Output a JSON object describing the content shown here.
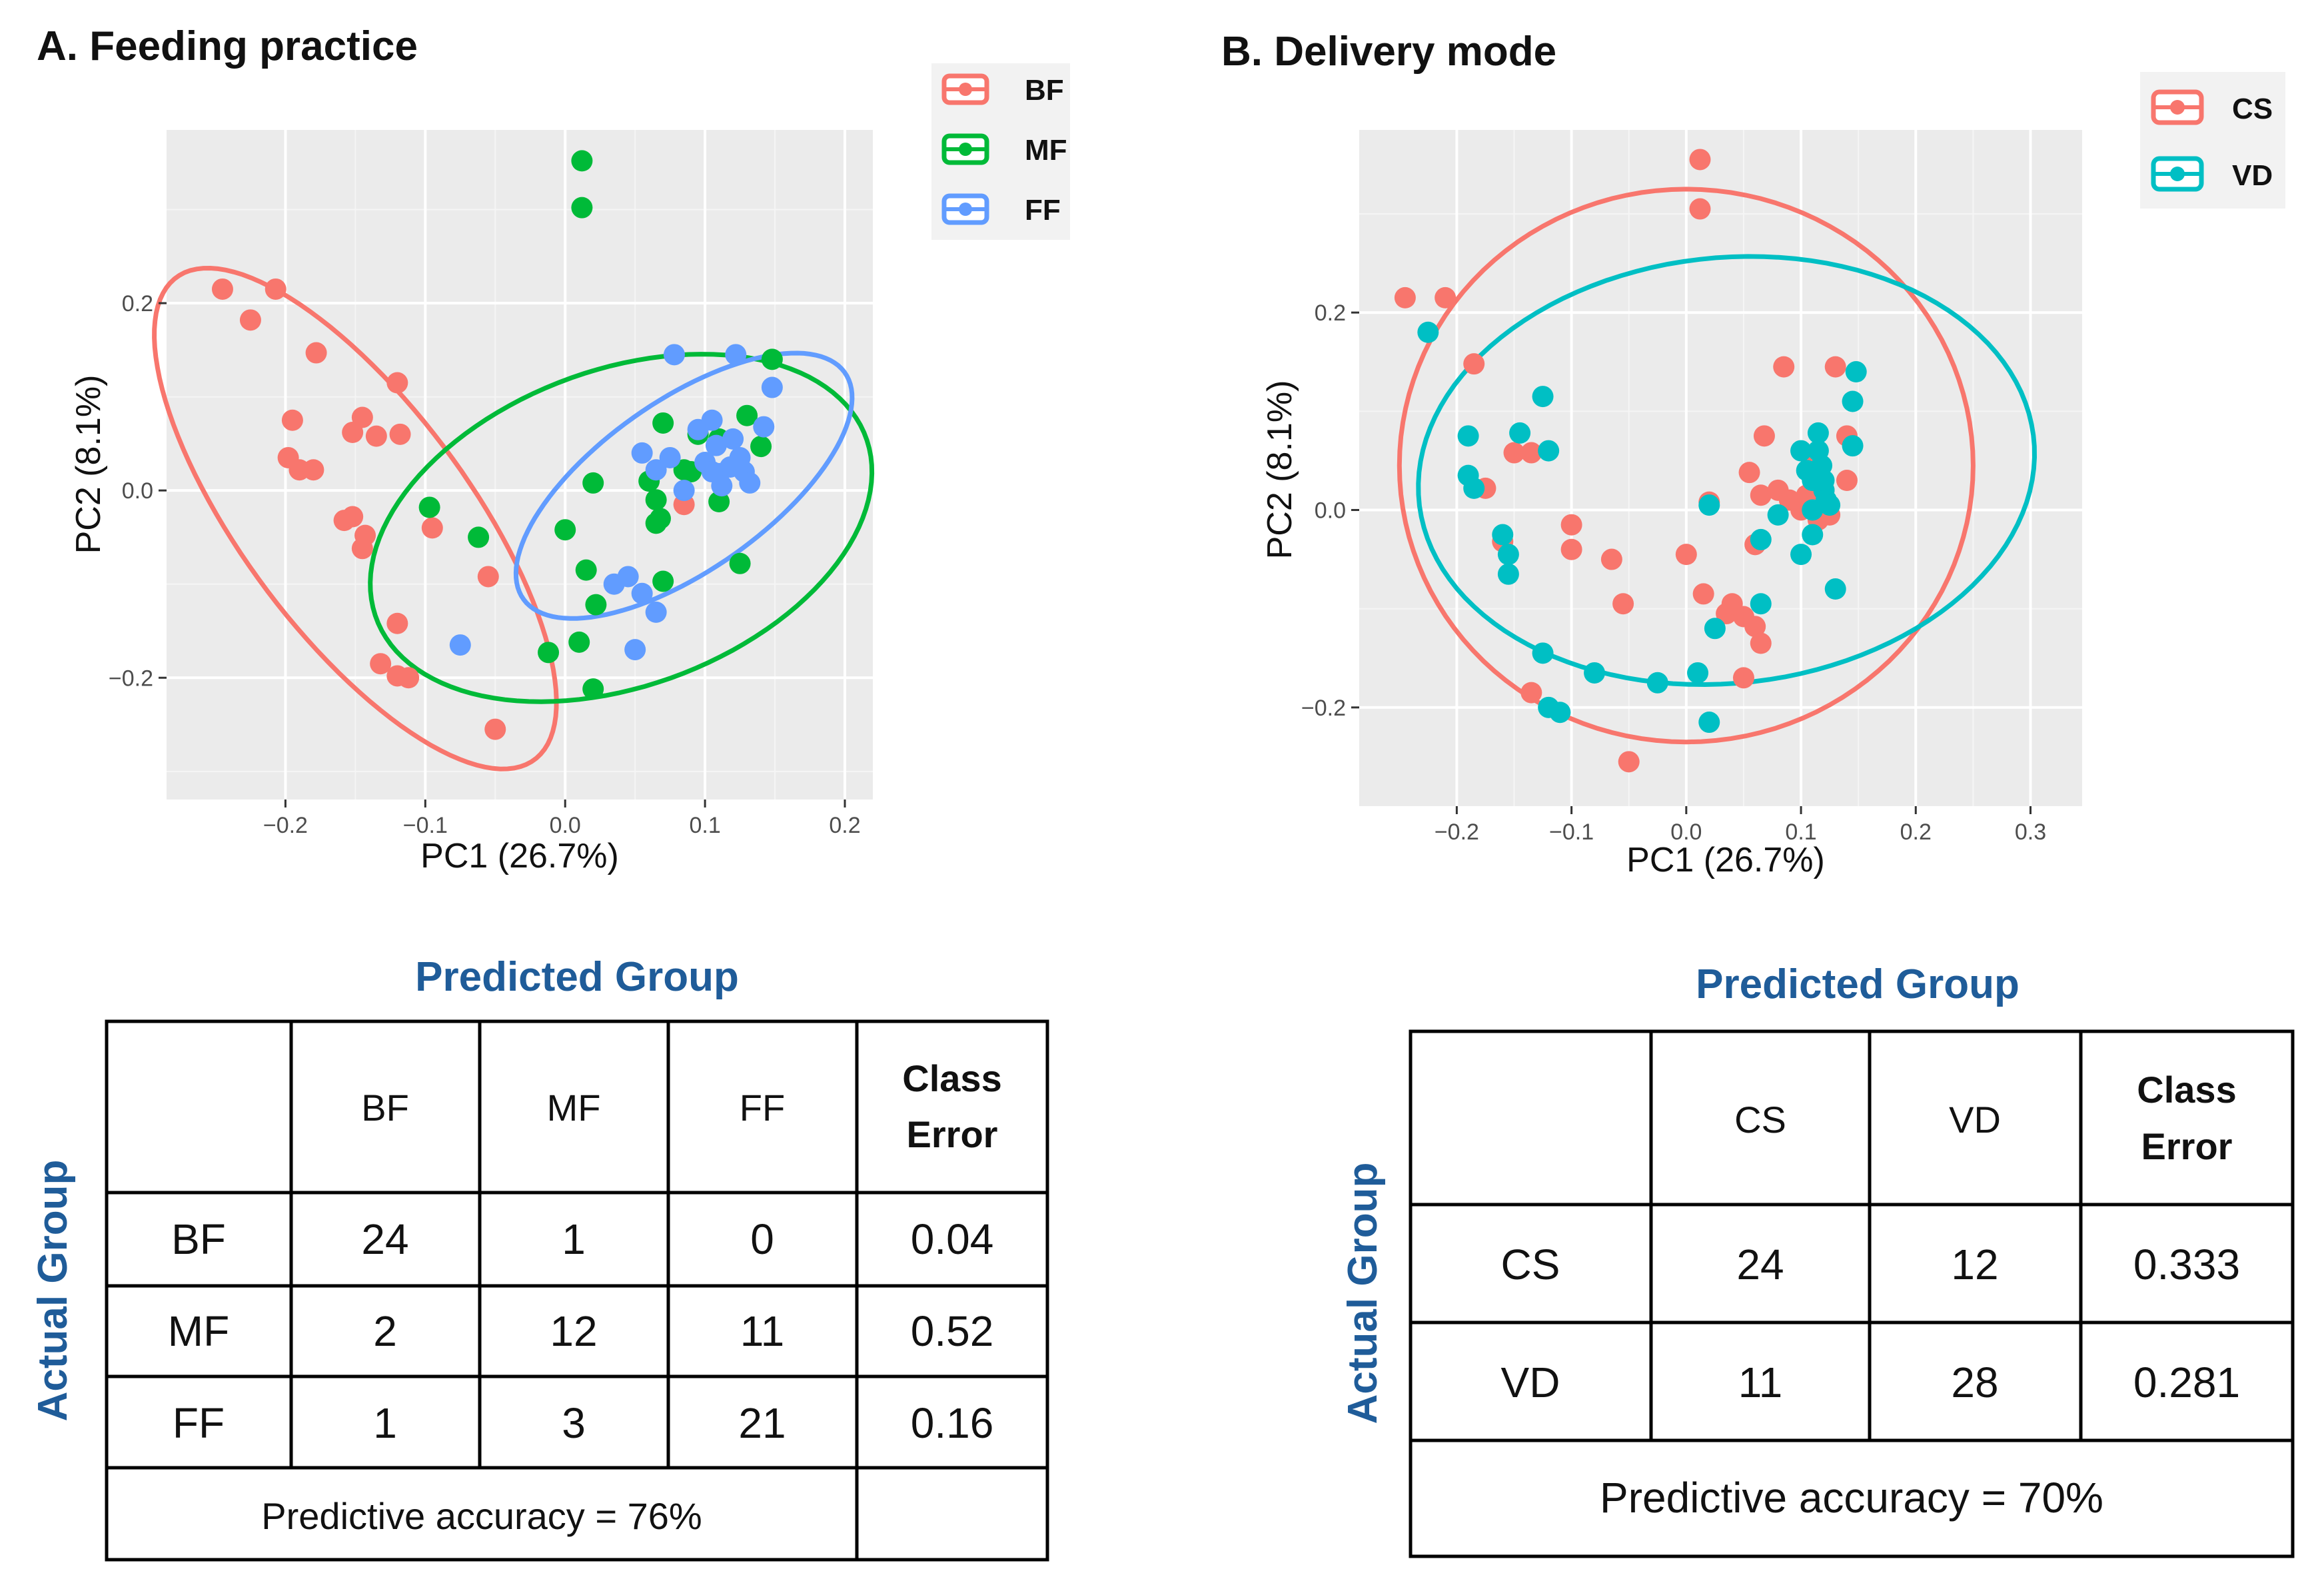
{
  "chart_data": [
    {
      "type": "scatter",
      "title": "A. Feeding practice",
      "xlabel": "PC1 (26.7%)",
      "ylabel": "PC2 (8.1%)",
      "xlim": [
        -0.285,
        0.22
      ],
      "ylim": [
        -0.33,
        0.385
      ],
      "xticks": [
        -0.2,
        -0.1,
        0.0,
        0.1,
        0.2
      ],
      "xtick_labels": [
        "−0.2",
        "−0.1",
        "0.0",
        "0.1",
        "0.2"
      ],
      "yticks": [
        0.2,
        0.0,
        -0.2
      ],
      "ytick_labels": [
        "0.2",
        "0.0",
        "−0.2"
      ],
      "grid": true,
      "legend_position": "top-right",
      "series": [
        {
          "name": "BF",
          "color": "#f8766d",
          "ellipse": {
            "cx": -0.15,
            "cy": -0.03,
            "a": 0.29,
            "b": 0.09,
            "angle_deg": -66
          },
          "points": [
            [
              -0.245,
              0.215
            ],
            [
              -0.225,
              0.182
            ],
            [
              -0.207,
              0.215
            ],
            [
              -0.178,
              0.147
            ],
            [
              -0.195,
              0.075
            ],
            [
              -0.198,
              0.035
            ],
            [
              -0.19,
              0.022
            ],
            [
              -0.18,
              0.022
            ],
            [
              -0.152,
              0.062
            ],
            [
              -0.145,
              0.078
            ],
            [
              -0.135,
              0.058
            ],
            [
              -0.12,
              0.115
            ],
            [
              -0.118,
              0.06
            ],
            [
              -0.158,
              -0.032
            ],
            [
              -0.152,
              -0.028
            ],
            [
              -0.143,
              -0.048
            ],
            [
              -0.145,
              -0.062
            ],
            [
              -0.12,
              -0.142
            ],
            [
              -0.132,
              -0.185
            ],
            [
              -0.12,
              -0.198
            ],
            [
              -0.112,
              -0.2
            ],
            [
              -0.095,
              -0.04
            ],
            [
              -0.055,
              -0.092
            ],
            [
              -0.05,
              -0.255
            ],
            [
              0.085,
              -0.015
            ]
          ]
        },
        {
          "name": "MF",
          "color": "#00ba38",
          "ellipse": {
            "cx": 0.04,
            "cy": -0.04,
            "a": 0.21,
            "b": 0.15,
            "angle_deg": 48
          },
          "points": [
            [
              0.012,
              0.352
            ],
            [
              0.012,
              0.302
            ],
            [
              -0.097,
              -0.018
            ],
            [
              -0.062,
              -0.05
            ],
            [
              -0.012,
              -0.173
            ],
            [
              0.0,
              -0.042
            ],
            [
              0.01,
              -0.162
            ],
            [
              0.015,
              -0.085
            ],
            [
              0.02,
              -0.212
            ],
            [
              0.022,
              -0.122
            ],
            [
              0.02,
              0.008
            ],
            [
              0.065,
              -0.035
            ],
            [
              0.07,
              0.072
            ],
            [
              0.068,
              -0.03
            ],
            [
              0.065,
              -0.01
            ],
            [
              0.07,
              -0.097
            ],
            [
              0.095,
              0.06
            ],
            [
              0.09,
              0.02
            ],
            [
              0.11,
              -0.012
            ],
            [
              0.13,
              0.08
            ],
            [
              0.14,
              0.047
            ],
            [
              0.148,
              0.14
            ],
            [
              0.125,
              -0.078
            ],
            [
              0.06,
              0.01
            ],
            [
              0.085,
              0.022
            ],
            [
              0.11,
              0.055
            ]
          ]
        },
        {
          "name": "FF",
          "color": "#619cff",
          "ellipse": {
            "cx": 0.085,
            "cy": 0.005,
            "a": 0.17,
            "b": 0.075,
            "angle_deg": 52
          },
          "points": [
            [
              -0.075,
              -0.165
            ],
            [
              0.05,
              -0.17
            ],
            [
              0.035,
              -0.1
            ],
            [
              0.045,
              -0.092
            ],
            [
              0.055,
              -0.11
            ],
            [
              0.065,
              -0.13
            ],
            [
              0.055,
              0.04
            ],
            [
              0.065,
              0.022
            ],
            [
              0.075,
              0.035
            ],
            [
              0.085,
              0.0
            ],
            [
              0.078,
              0.145
            ],
            [
              0.095,
              0.065
            ],
            [
              0.1,
              0.03
            ],
            [
              0.105,
              0.075
            ],
            [
              0.108,
              0.048
            ],
            [
              0.11,
              0.018
            ],
            [
              0.112,
              0.005
            ],
            [
              0.118,
              0.025
            ],
            [
              0.12,
              0.055
            ],
            [
              0.122,
              0.145
            ],
            [
              0.128,
              0.02
            ],
            [
              0.132,
              0.008
            ],
            [
              0.142,
              0.068
            ],
            [
              0.148,
              0.11
            ],
            [
              0.105,
              0.02
            ],
            [
              0.125,
              0.035
            ]
          ]
        }
      ]
    },
    {
      "type": "scatter",
      "title": "B. Delivery mode",
      "xlabel": "PC1 (26.7%)",
      "ylabel": "PC2 (8.1%)",
      "xlim": [
        -0.285,
        0.345
      ],
      "ylim": [
        -0.3,
        0.385
      ],
      "xticks": [
        -0.2,
        -0.1,
        0.0,
        0.1,
        0.2,
        0.3
      ],
      "xtick_labels": [
        "−0.2",
        "−0.1",
        "0.0",
        "0.1",
        "0.2",
        "0.3"
      ],
      "yticks": [
        0.2,
        0.0,
        -0.2
      ],
      "ytick_labels": [
        "0.2",
        "0.0",
        "−0.2"
      ],
      "grid": true,
      "legend_position": "top-right",
      "series": [
        {
          "name": "CS",
          "color": "#f8766d",
          "ellipse": {
            "cx": 0.0,
            "cy": 0.045,
            "a": 0.25,
            "b": 0.28,
            "angle_deg": 0
          },
          "points": [
            [
              0.012,
              0.355
            ],
            [
              0.012,
              0.305
            ],
            [
              -0.245,
              0.215
            ],
            [
              -0.21,
              0.215
            ],
            [
              -0.185,
              0.148
            ],
            [
              -0.15,
              0.058
            ],
            [
              -0.135,
              0.058
            ],
            [
              -0.16,
              -0.032
            ],
            [
              -0.175,
              0.022
            ],
            [
              -0.1,
              -0.015
            ],
            [
              -0.1,
              -0.04
            ],
            [
              -0.065,
              -0.05
            ],
            [
              -0.055,
              -0.095
            ],
            [
              0.0,
              -0.045
            ],
            [
              0.02,
              0.008
            ],
            [
              0.015,
              -0.085
            ],
            [
              0.035,
              -0.105
            ],
            [
              0.04,
              -0.095
            ],
            [
              0.05,
              -0.108
            ],
            [
              0.06,
              -0.118
            ],
            [
              0.065,
              -0.135
            ],
            [
              0.05,
              -0.17
            ],
            [
              0.055,
              0.038
            ],
            [
              0.065,
              0.015
            ],
            [
              0.068,
              0.075
            ],
            [
              0.08,
              0.02
            ],
            [
              0.085,
              0.145
            ],
            [
              0.09,
              0.01
            ],
            [
              0.1,
              0.0
            ],
            [
              0.105,
              0.015
            ],
            [
              0.11,
              0.045
            ],
            [
              0.115,
              -0.01
            ],
            [
              0.12,
              0.02
            ],
            [
              0.13,
              0.145
            ],
            [
              0.14,
              0.075
            ],
            [
              0.14,
              0.03
            ],
            [
              0.125,
              -0.005
            ],
            [
              0.06,
              -0.035
            ],
            [
              -0.135,
              -0.185
            ],
            [
              -0.05,
              -0.255
            ]
          ]
        },
        {
          "name": "VD",
          "color": "#00bfc4",
          "ellipse": {
            "cx": 0.035,
            "cy": 0.04,
            "a": 0.27,
            "b": 0.215,
            "angle_deg": 10
          },
          "points": [
            [
              -0.225,
              0.18
            ],
            [
              -0.19,
              0.075
            ],
            [
              -0.19,
              0.035
            ],
            [
              -0.185,
              0.022
            ],
            [
              -0.16,
              -0.025
            ],
            [
              -0.155,
              -0.045
            ],
            [
              -0.155,
              -0.065
            ],
            [
              -0.145,
              0.078
            ],
            [
              -0.125,
              0.115
            ],
            [
              -0.12,
              0.06
            ],
            [
              -0.125,
              -0.145
            ],
            [
              -0.12,
              -0.2
            ],
            [
              -0.11,
              -0.205
            ],
            [
              -0.08,
              -0.165
            ],
            [
              -0.025,
              -0.175
            ],
            [
              0.01,
              -0.165
            ],
            [
              0.02,
              -0.215
            ],
            [
              0.025,
              -0.12
            ],
            [
              0.02,
              0.005
            ],
            [
              0.065,
              -0.095
            ],
            [
              0.065,
              -0.03
            ],
            [
              0.08,
              -0.005
            ],
            [
              0.1,
              0.06
            ],
            [
              0.1,
              -0.045
            ],
            [
              0.105,
              0.04
            ],
            [
              0.11,
              0.0
            ],
            [
              0.11,
              -0.025
            ],
            [
              0.115,
              0.078
            ],
            [
              0.118,
              0.045
            ],
            [
              0.12,
              0.02
            ],
            [
              0.12,
              0.03
            ],
            [
              0.122,
              0.01
            ],
            [
              0.13,
              -0.08
            ],
            [
              0.145,
              0.065
            ],
            [
              0.145,
              0.11
            ],
            [
              0.148,
              0.14
            ],
            [
              0.115,
              0.06
            ],
            [
              0.125,
              0.005
            ],
            [
              0.11,
              0.03
            ]
          ]
        }
      ]
    }
  ],
  "tables": {
    "a": {
      "header": "Predicted Group",
      "side_label": "Actual Group",
      "columns": [
        "BF",
        "MF",
        "FF"
      ],
      "class_error_line1": "Class",
      "class_error_line2": "Error",
      "rows": [
        {
          "label": "BF",
          "v1": "24",
          "v2": "1",
          "v3": "0",
          "err": "0.04"
        },
        {
          "label": "MF",
          "v1": "2",
          "v2": "12",
          "v3": "11",
          "err": "0.52"
        },
        {
          "label": "FF",
          "v1": "1",
          "v2": "3",
          "v3": "21",
          "err": "0.16"
        }
      ],
      "accuracy": "Predictive accuracy = 76%"
    },
    "b": {
      "header": "Predicted Group",
      "side_label": "Actual Group",
      "columns": [
        "CS",
        "VD"
      ],
      "class_error_line1": "Class",
      "class_error_line2": "Error",
      "rows": [
        {
          "label": "CS",
          "v1": "24",
          "v2": "12",
          "err": "0.333"
        },
        {
          "label": "VD",
          "v1": "11",
          "v2": "28",
          "err": "0.281"
        }
      ],
      "accuracy": "Predictive accuracy = 70%"
    }
  }
}
